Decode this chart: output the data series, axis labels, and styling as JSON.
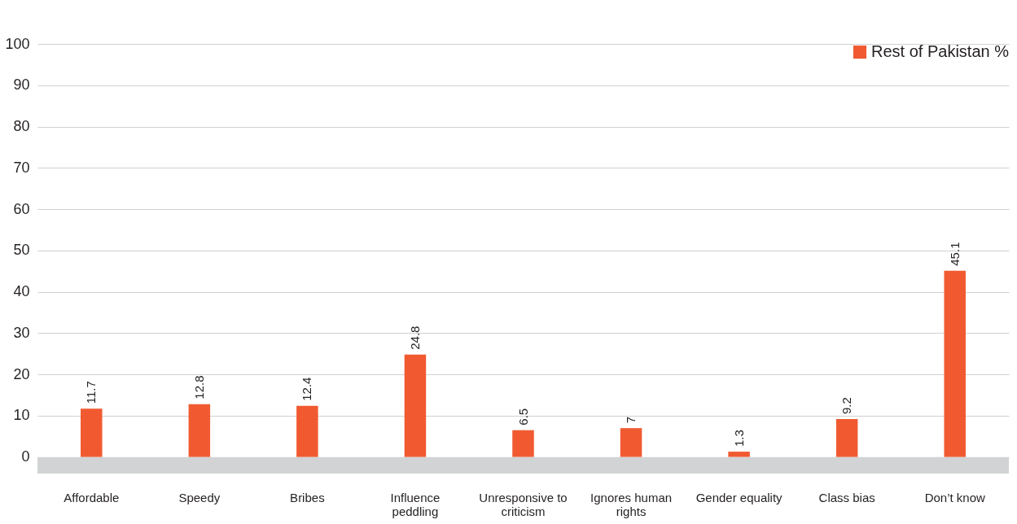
{
  "chart_data": {
    "type": "bar",
    "categories": [
      "Affordable",
      "Speedy",
      "Bribes",
      "Influence peddling",
      "Unresponsive to criticism",
      "Ignores human rights",
      "Gender equality",
      "Class bias",
      "Don’t know"
    ],
    "series": [
      {
        "name": "Rest of Pakistan %",
        "color": "#f15a31",
        "values": [
          11.7,
          12.8,
          12.4,
          24.8,
          6.5,
          7,
          1.3,
          9.2,
          45.1
        ]
      }
    ],
    "ylim": [
      -4,
      100
    ],
    "yticks": [
      0,
      10,
      20,
      30,
      40,
      50,
      60,
      70,
      80,
      90,
      100
    ],
    "grid": "y",
    "legend": "top right",
    "data_labels": true,
    "bands": [
      {
        "axis": "y",
        "from": -4,
        "to": 0,
        "color": "#d1d3d4"
      }
    ]
  }
}
